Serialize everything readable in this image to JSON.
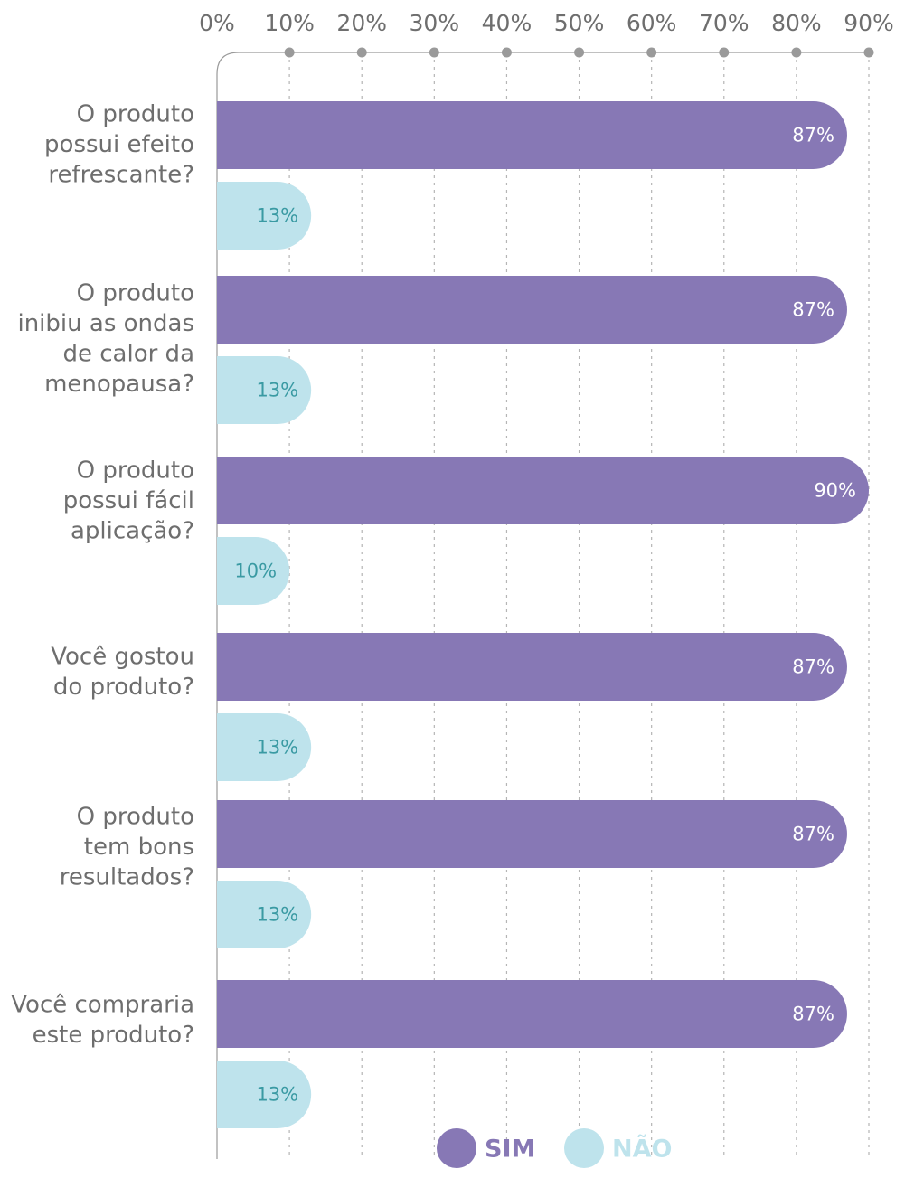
{
  "chart_data": {
    "type": "bar",
    "orientation": "horizontal",
    "categories": [
      "O produto possui efeito refrescante?",
      "O produto inibiu as ondas de calor da menopausa?",
      "O produto possui fácil aplicação?",
      "Você gostou do produto?",
      "O produto tem bons resultados?",
      "Você compraria este produto?"
    ],
    "category_lines": [
      [
        "O produto",
        "possui efeito",
        "refrescante?"
      ],
      [
        "O produto",
        "inibiu as ondas",
        "de calor da",
        "menopausa?"
      ],
      [
        "O produto",
        "possui fácil",
        "aplicação?"
      ],
      [
        "Você gostou",
        "do produto?"
      ],
      [
        "O produto",
        "tem bons",
        "resultados?"
      ],
      [
        "Você compraria",
        "este produto?"
      ]
    ],
    "series": [
      {
        "name": "SIM",
        "values": [
          87,
          87,
          90,
          87,
          87,
          87
        ],
        "labels": [
          "87%",
          "87%",
          "90%",
          "87%",
          "87%",
          "87%"
        ],
        "color": "#8778b5",
        "label_color": "#ffffff"
      },
      {
        "name": "NÃO",
        "values": [
          13,
          13,
          10,
          13,
          13,
          13
        ],
        "labels": [
          "13%",
          "13%",
          "10%",
          "13%",
          "13%",
          "13%"
        ],
        "color": "#bee3ec",
        "label_color": "#3a9aa3"
      }
    ],
    "xticks": [
      0,
      10,
      20,
      30,
      40,
      50,
      60,
      70,
      80,
      90
    ],
    "xtick_labels": [
      "0%",
      "10%",
      "20%",
      "30%",
      "40%",
      "50%",
      "60%",
      "70%",
      "80%",
      "90%"
    ],
    "xlim": [
      0,
      90
    ],
    "axis_position": "top",
    "grid": "vertical dotted",
    "legend_position": "bottom",
    "axis_color": "#9a9a9a",
    "label_color": "#6e6e6e"
  }
}
